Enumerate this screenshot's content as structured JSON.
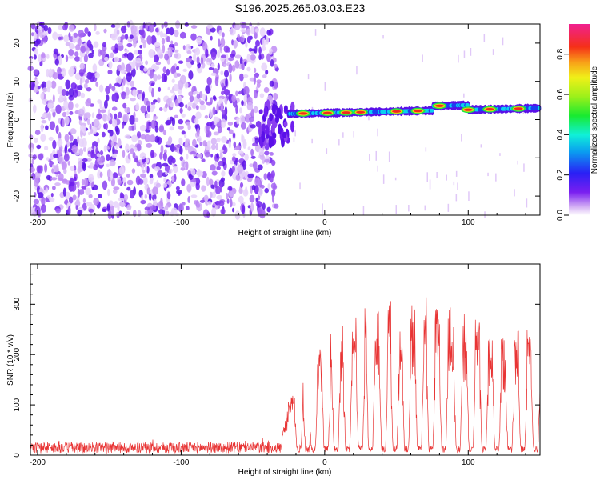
{
  "title": "S196.2025.265.03.03.E23",
  "colors": {
    "snr_line": "#e83434",
    "axis": "#000000"
  },
  "chart_data": [
    {
      "type": "heatmap",
      "xlabel": "Height of straight line (km)",
      "ylabel": "Frequency (Hz)",
      "xlim": [
        -205,
        150
      ],
      "ylim": [
        -25,
        25
      ],
      "x_ticks": [
        -200,
        -100,
        0,
        100
      ],
      "x_tick_labels": [
        "-200",
        "-100",
        "0",
        "100"
      ],
      "y_ticks": [
        -20,
        -10,
        0,
        10,
        20
      ],
      "y_tick_labels": [
        "-20",
        "-10",
        "0",
        "10",
        "20"
      ],
      "colorbar": {
        "label": "Normalized spectral amplitude",
        "range": [
          0,
          0.95
        ],
        "ticks": [
          0.0,
          0.2,
          0.4,
          0.6,
          0.8
        ],
        "tick_labels": [
          "0.0",
          "0.2",
          "0.4",
          "0.6",
          "0.8"
        ],
        "colormap": "rainbow (white-purple-blue-cyan-green-yellow-orange-red-magenta)"
      },
      "features": {
        "noise_region_x": [
          -205,
          -33
        ],
        "signal_band_x": [
          -25,
          150
        ],
        "signal_band_frequency_hz": 2.5,
        "signal_band_start_frequency_hz": 1.5,
        "signal_band_end_frequency_hz": 3.0,
        "peak_x": [
          -15,
          2,
          15,
          25,
          50,
          65,
          80,
          100,
          115,
          135
        ]
      }
    },
    {
      "type": "line",
      "xlabel": "Height of straight line (km)",
      "ylabel": "SNR (10 * v/v)",
      "xlim": [
        -205,
        150
      ],
      "ylim": [
        0,
        380
      ],
      "x_ticks": [
        -200,
        -100,
        0,
        100
      ],
      "x_tick_labels": [
        "-200",
        "-100",
        "0",
        "100"
      ],
      "y_ticks": [
        0,
        100,
        200,
        300
      ],
      "y_tick_labels": [
        "0",
        "100",
        "200",
        "300"
      ],
      "baseline_snr": 15,
      "rise_start_x": -30,
      "envelope": {
        "x": [
          -30,
          -25,
          -15,
          -5,
          0,
          10,
          20,
          30,
          40,
          50,
          60,
          70,
          80,
          90,
          100,
          110,
          120,
          130,
          140,
          145,
          150
        ],
        "y": [
          40,
          100,
          170,
          200,
          210,
          230,
          250,
          275,
          290,
          300,
          280,
          285,
          295,
          260,
          260,
          240,
          215,
          220,
          235,
          200,
          160
        ]
      },
      "dip_x": [
        -18,
        -12,
        -8,
        1,
        8,
        16,
        25,
        32,
        41,
        49,
        57,
        66,
        74,
        83,
        93,
        102,
        111,
        120,
        129,
        138,
        147
      ]
    }
  ]
}
